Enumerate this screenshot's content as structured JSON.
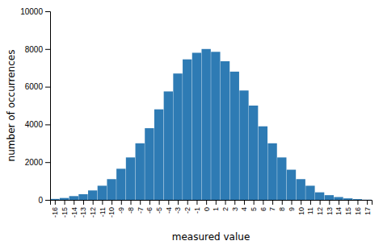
{
  "chart_data": {
    "type": "bar",
    "x": [
      -16,
      -15,
      -14,
      -13,
      -12,
      -11,
      -10,
      -9,
      -8,
      -7,
      -6,
      -5,
      -4,
      -3,
      -2,
      -1,
      0,
      1,
      2,
      3,
      4,
      5,
      6,
      7,
      8,
      9,
      10,
      11,
      12,
      13,
      14,
      15,
      16,
      17
    ],
    "values": [
      50,
      100,
      200,
      300,
      500,
      750,
      1100,
      1650,
      2250,
      3000,
      3800,
      4800,
      5750,
      6700,
      7450,
      7800,
      8000,
      7850,
      7350,
      6800,
      5800,
      5000,
      3900,
      3000,
      2250,
      1600,
      1100,
      750,
      400,
      250,
      150,
      80,
      40,
      10
    ],
    "color": "#2e7bb4",
    "xlabel": "measured value",
    "ylabel": "number of occurrences",
    "xlim": [
      -16.5,
      17.5
    ],
    "xticks": [
      -16,
      -15,
      -14,
      -13,
      -12,
      -11,
      -10,
      -9,
      -8,
      -7,
      -6,
      -5,
      -4,
      -3,
      -2,
      -1,
      0,
      1,
      2,
      3,
      4,
      5,
      6,
      7,
      8,
      9,
      10,
      11,
      12,
      13,
      14,
      15,
      16,
      17
    ],
    "ylim": [
      0,
      10000
    ],
    "yticks": [
      0,
      2000,
      4000,
      6000,
      8000,
      10000
    ]
  }
}
